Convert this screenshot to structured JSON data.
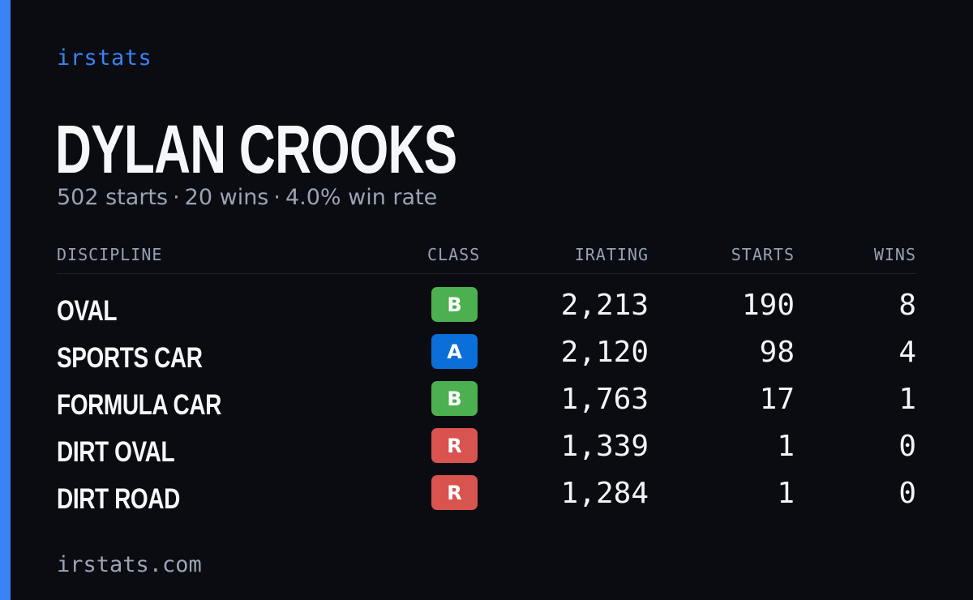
{
  "brand": "irstats",
  "driver": {
    "name": "DYLAN CROOKS",
    "starts": "502 starts",
    "wins": "20 wins",
    "win_rate": "4.0% win rate",
    "separator": "·"
  },
  "table": {
    "headers": {
      "discipline": "DISCIPLINE",
      "class": "CLASS",
      "irating": "IRATING",
      "starts": "STARTS",
      "wins": "WINS"
    },
    "rows": [
      {
        "discipline": "OVAL",
        "class": "B",
        "irating": "2,213",
        "starts": "190",
        "wins": "8"
      },
      {
        "discipline": "SPORTS CAR",
        "class": "A",
        "irating": "2,120",
        "starts": "98",
        "wins": "4"
      },
      {
        "discipline": "FORMULA CAR",
        "class": "B",
        "irating": "1,763",
        "starts": "17",
        "wins": "1"
      },
      {
        "discipline": "DIRT OVAL",
        "class": "R",
        "irating": "1,339",
        "starts": "1",
        "wins": "0"
      },
      {
        "discipline": "DIRT ROAD",
        "class": "R",
        "irating": "1,284",
        "starts": "1",
        "wins": "0"
      }
    ]
  },
  "class_colors": {
    "A": "#0a6fd8",
    "B": "#4caf50",
    "R": "#d9534f"
  },
  "colors": {
    "accent": "#3b82f6",
    "background": "#0a0c12"
  },
  "footer": "irstats.com"
}
